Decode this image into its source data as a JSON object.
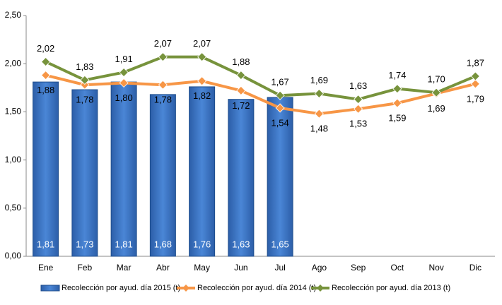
{
  "chart_data": {
    "type": "bar",
    "categories": [
      "Ene",
      "Feb",
      "Mar",
      "Abr",
      "May",
      "Jun",
      "Jul",
      "Ago",
      "Sep",
      "Oct",
      "Nov",
      "Dic"
    ],
    "ylim": [
      0,
      2.5
    ],
    "yticks": [
      {
        "value": 0,
        "label": "0,00"
      },
      {
        "value": 0.5,
        "label": "0,50"
      },
      {
        "value": 1,
        "label": "1,00"
      },
      {
        "value": 1.5,
        "label": "1,50"
      },
      {
        "value": 2,
        "label": "2,00"
      },
      {
        "value": 2.5,
        "label": "2,50"
      }
    ],
    "grid": false,
    "legend": "bottom",
    "series": [
      {
        "name": "Recolección por ayud. día 2015 (t)",
        "type": "bar",
        "color": "#3d72c2",
        "values": [
          1.81,
          1.73,
          1.81,
          1.68,
          1.76,
          1.63,
          1.65,
          null,
          null,
          null,
          null,
          null
        ],
        "value_labels": [
          "1,81",
          "1,73",
          "1,81",
          "1,68",
          "1,76",
          "1,63",
          "1,65",
          null,
          null,
          null,
          null,
          null
        ]
      },
      {
        "name": "Recolección por ayud. día 2014 (t)",
        "type": "line",
        "color": "#f79646",
        "values": [
          1.88,
          1.78,
          1.8,
          1.78,
          1.82,
          1.72,
          1.54,
          1.48,
          1.53,
          1.59,
          1.69,
          1.79
        ],
        "value_labels": [
          "1,88",
          "1,78",
          "1,80",
          "1,78",
          "1,82",
          "1,72",
          "1,54",
          "1,48",
          "1,53",
          "1,59",
          "1,69",
          "1,79"
        ]
      },
      {
        "name": "Recolección por ayud. día 2013 (t)",
        "type": "line",
        "color": "#77933c",
        "values": [
          2.02,
          1.83,
          1.91,
          2.07,
          2.07,
          1.88,
          1.67,
          1.69,
          1.63,
          1.74,
          1.7,
          1.87
        ],
        "value_labels": [
          "2,02",
          "1,83",
          "1,91",
          "2,07",
          "2,07",
          "1,88",
          "1,67",
          "1,69",
          "1,63",
          "1,74",
          "1,70",
          "1,87"
        ]
      }
    ]
  }
}
